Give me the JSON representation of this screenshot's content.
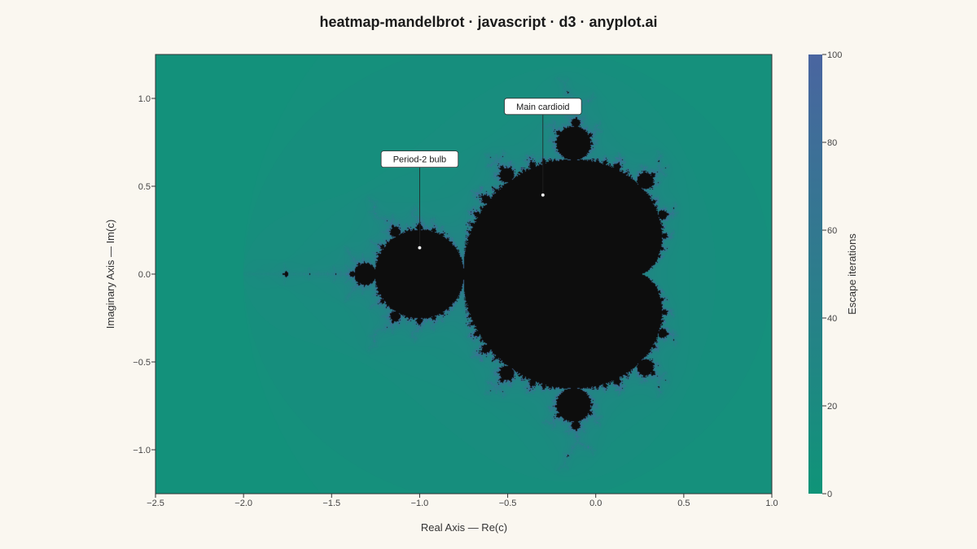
{
  "chart_data": {
    "type": "heatmap",
    "title": "heatmap-mandelbrot · javascript · d3 · anyplot.ai",
    "xlabel": "Real Axis — Re(c)",
    "ylabel": "Imaginary Axis — Im(c)",
    "xlim": [
      -2.5,
      1.0
    ],
    "ylim": [
      -1.25,
      1.25
    ],
    "x_ticks": [
      -2.5,
      -2.0,
      -1.5,
      -1.0,
      -0.5,
      0.0,
      0.5,
      1.0
    ],
    "x_tick_labels": [
      "−2.5",
      "−2.0",
      "−1.5",
      "−1.0",
      "−0.5",
      "0.0",
      "0.5",
      "1.0"
    ],
    "y_ticks": [
      1.0,
      0.5,
      0.0,
      -0.5,
      -1.0
    ],
    "y_tick_labels": [
      "1.0",
      "0.5",
      "0.0",
      "−0.5",
      "−1.0"
    ],
    "max_iterations": 100,
    "colorbar": {
      "label": "Escape iterations",
      "min": 0,
      "max": 100,
      "ticks": [
        0,
        20,
        40,
        60,
        80,
        100
      ],
      "tick_labels": [
        "0",
        "20",
        "40",
        "60",
        "80",
        "100"
      ],
      "color_low": "#0f9478",
      "color_high": "#4a65a0",
      "inside_set_color": "#0d0d0d"
    },
    "annotations": [
      {
        "label": "Main cardioid",
        "re": -0.3,
        "im": 0.45
      },
      {
        "label": "Period-2 bulb",
        "re": -1.0,
        "im": 0.15
      }
    ],
    "grid": false
  }
}
